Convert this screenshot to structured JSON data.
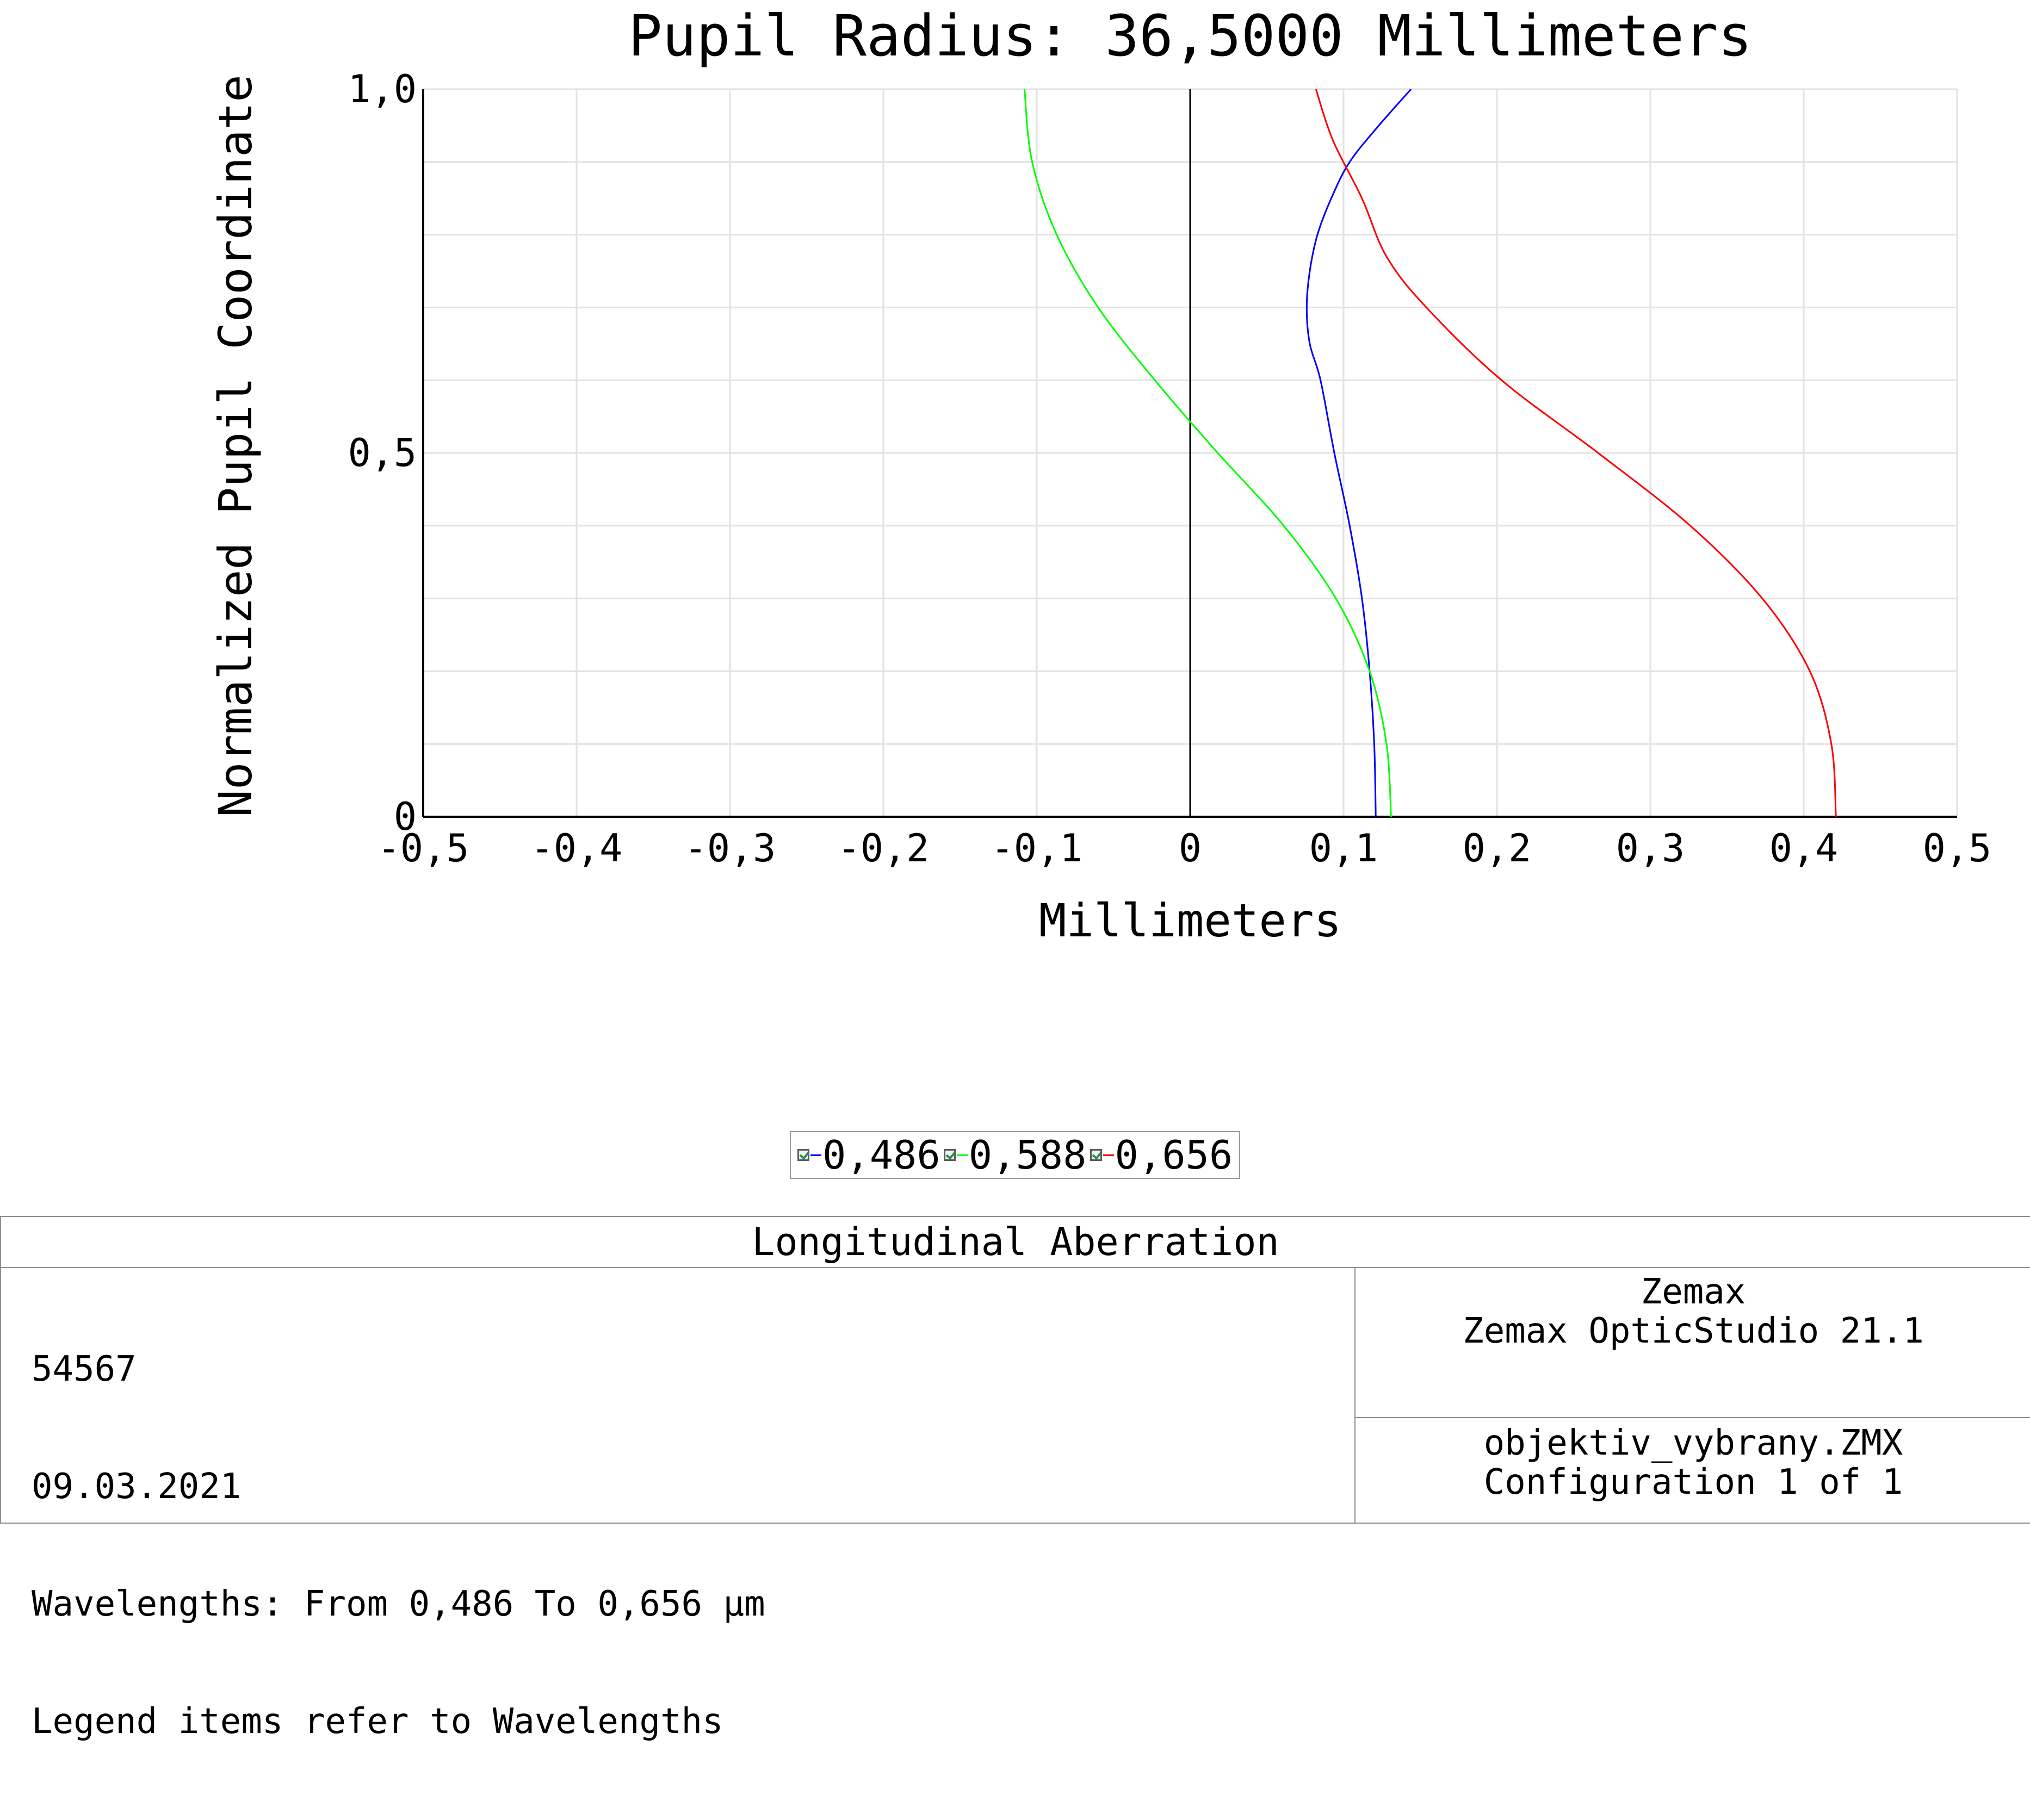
{
  "chart_data": {
    "type": "line",
    "title": "Pupil Radius: 36,5000 Millimeters",
    "xlabel": "Millimeters",
    "ylabel": "Normalized Pupil Coordinate",
    "xlim": [
      -0.5,
      0.5
    ],
    "ylim": [
      0,
      1
    ],
    "xticks": [
      -0.5,
      -0.4,
      -0.3,
      -0.2,
      -0.1,
      0,
      0.1,
      0.2,
      0.3,
      0.4,
      0.5
    ],
    "xtick_labels": [
      "-0,5",
      "-0,4",
      "-0,3",
      "-0,2",
      "-0,1",
      "0",
      "0,1",
      "0,2",
      "0,3",
      "0,4",
      "0,5"
    ],
    "yticks": [
      0,
      0.5,
      1.0
    ],
    "ytick_labels": [
      "0",
      "0,5",
      "1,0"
    ],
    "grid": true,
    "series": [
      {
        "name": "0,486",
        "color": "#0000ff",
        "x": [
          0.121,
          0.12,
          0.117,
          0.112,
          0.104,
          0.094,
          0.085,
          0.078,
          0.076,
          0.078,
          0.083,
          0.092,
          0.104,
          0.123,
          0.144
        ],
        "y": [
          0.0,
          0.1,
          0.2,
          0.3,
          0.4,
          0.5,
          0.6,
          0.65,
          0.7,
          0.75,
          0.8,
          0.85,
          0.9,
          0.95,
          1.0
        ]
      },
      {
        "name": "0,588",
        "color": "#00ff00",
        "x": [
          0.131,
          0.128,
          0.117,
          0.095,
          0.061,
          0.018,
          -0.023,
          -0.06,
          -0.087,
          -0.103,
          -0.108
        ],
        "y": [
          0.0,
          0.1,
          0.2,
          0.3,
          0.4,
          0.5,
          0.6,
          0.7,
          0.8,
          0.9,
          1.0
        ]
      },
      {
        "name": "0,656",
        "color": "#ff0000",
        "x": [
          0.421,
          0.418,
          0.404,
          0.373,
          0.326,
          0.266,
          0.203,
          0.154,
          0.128,
          0.112,
          0.093,
          0.082
        ],
        "y": [
          0.0,
          0.1,
          0.2,
          0.3,
          0.4,
          0.5,
          0.6,
          0.7,
          0.77,
          0.85,
          0.93,
          1.0
        ]
      }
    ],
    "legend_placement": "bottom-center"
  },
  "legend": {
    "items": [
      {
        "label": "0,486",
        "color": "#0000ff"
      },
      {
        "label": "0,588",
        "color": "#00ff00"
      },
      {
        "label": "0,656",
        "color": "#ff0000"
      }
    ]
  },
  "info": {
    "title": "Longitudinal Aberration",
    "left_lines": [
      "54567",
      "09.03.2021",
      "Wavelengths: From 0,486 To 0,656 µm",
      "Legend items refer to Wavelengths"
    ],
    "right_top_lines": [
      "Zemax",
      "Zemax OpticStudio 21.1"
    ],
    "right_bottom_lines": [
      "objektiv_vybrany.ZMX",
      "Configuration 1 of 1"
    ]
  }
}
